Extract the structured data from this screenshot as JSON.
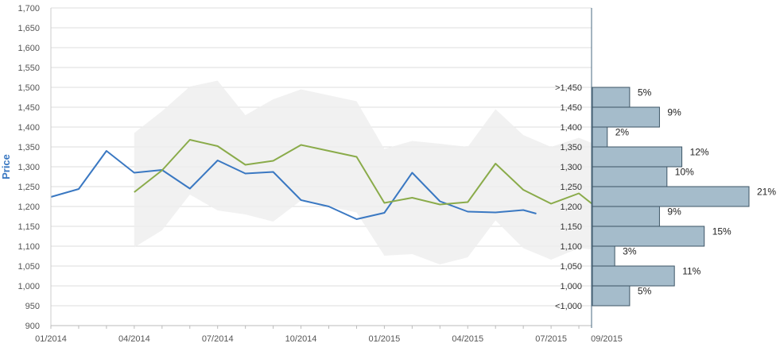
{
  "chart_data": {
    "type": "line",
    "ylabel": "Price",
    "ylim": [
      900,
      1700
    ],
    "y_ticks": [
      "1,700",
      "1,650",
      "1,600",
      "1,550",
      "1,500",
      "1,450",
      "1,400",
      "1,350",
      "1,300",
      "1,250",
      "1,200",
      "1,150",
      "1,100",
      "1,050",
      "1,000",
      "950",
      "900"
    ],
    "y_tick_values": [
      1700,
      1650,
      1600,
      1550,
      1500,
      1450,
      1400,
      1350,
      1300,
      1250,
      1200,
      1150,
      1100,
      1050,
      1000,
      950,
      900
    ],
    "x_range": [
      "2014-01",
      "2015-09"
    ],
    "x_ticks": [
      "01/2014",
      "04/2014",
      "07/2014",
      "10/2014",
      "01/2015",
      "04/2015",
      "07/2015",
      "09/2015"
    ],
    "x_tick_months": [
      0,
      3,
      6,
      9,
      12,
      15,
      18,
      20
    ],
    "colors": {
      "blue": "#3a78c2",
      "green": "#8aab4a",
      "band": "#eeeeee",
      "hist_fill": "#a5bccb",
      "hist_stroke": "#3d5566"
    },
    "series": [
      {
        "color": "#3a78c2",
        "points": [
          {
            "x": "2014-01",
            "y": 1224
          },
          {
            "x": "2014-02",
            "y": 1244
          },
          {
            "x": "2014-03",
            "y": 1340
          },
          {
            "x": "2014-04",
            "y": 1285
          },
          {
            "x": "2014-05",
            "y": 1292
          },
          {
            "x": "2014-06",
            "y": 1245
          },
          {
            "x": "2014-07",
            "y": 1316
          },
          {
            "x": "2014-08",
            "y": 1283
          },
          {
            "x": "2014-09",
            "y": 1287
          },
          {
            "x": "2014-10",
            "y": 1216
          },
          {
            "x": "2014-11",
            "y": 1200
          },
          {
            "x": "2014-12",
            "y": 1168
          },
          {
            "x": "2015-01",
            "y": 1184
          },
          {
            "x": "2015-02",
            "y": 1285
          },
          {
            "x": "2015-03",
            "y": 1213
          },
          {
            "x": "2015-04",
            "y": 1187
          },
          {
            "x": "2015-05",
            "y": 1185
          },
          {
            "x": "2015-06",
            "y": 1191
          },
          {
            "x": "2015-06-15",
            "y": 1182
          }
        ]
      },
      {
        "color": "#8aab4a",
        "points": [
          {
            "x": "2014-04",
            "y": 1236
          },
          {
            "x": "2014-05",
            "y": 1291
          },
          {
            "x": "2014-06",
            "y": 1368
          },
          {
            "x": "2014-07",
            "y": 1352
          },
          {
            "x": "2014-08",
            "y": 1305
          },
          {
            "x": "2014-09",
            "y": 1315
          },
          {
            "x": "2014-10",
            "y": 1355
          },
          {
            "x": "2014-11",
            "y": 1340
          },
          {
            "x": "2014-12",
            "y": 1325
          },
          {
            "x": "2015-01",
            "y": 1209
          },
          {
            "x": "2015-02",
            "y": 1222
          },
          {
            "x": "2015-03",
            "y": 1205
          },
          {
            "x": "2015-04",
            "y": 1211
          },
          {
            "x": "2015-05",
            "y": 1308
          },
          {
            "x": "2015-06",
            "y": 1242
          },
          {
            "x": "2015-07",
            "y": 1207
          },
          {
            "x": "2015-08",
            "y": 1233
          },
          {
            "x": "2015-08-15",
            "y": 1207
          },
          {
            "x": "2015-09",
            "y": 1182
          },
          {
            "x": "2015-09-01",
            "y": 1220
          }
        ]
      }
    ],
    "forecast_band": {
      "color": "#eeeeee",
      "upper": [
        {
          "x": "2014-04",
          "y": 1385
        },
        {
          "x": "2014-05",
          "y": 1440
        },
        {
          "x": "2014-06",
          "y": 1502
        },
        {
          "x": "2014-07",
          "y": 1517
        },
        {
          "x": "2014-08",
          "y": 1430
        },
        {
          "x": "2014-09",
          "y": 1470
        },
        {
          "x": "2014-10",
          "y": 1495
        },
        {
          "x": "2014-11",
          "y": 1480
        },
        {
          "x": "2014-12",
          "y": 1465
        },
        {
          "x": "2015-01",
          "y": 1345
        },
        {
          "x": "2015-02",
          "y": 1365
        },
        {
          "x": "2015-03",
          "y": 1358
        },
        {
          "x": "2015-04",
          "y": 1350
        },
        {
          "x": "2015-05",
          "y": 1445
        },
        {
          "x": "2015-06",
          "y": 1380
        },
        {
          "x": "2015-07",
          "y": 1350
        },
        {
          "x": "2015-08",
          "y": 1373
        },
        {
          "x": "2015-09",
          "y": 1345
        }
      ],
      "lower": [
        {
          "x": "2014-04",
          "y": 1097
        },
        {
          "x": "2014-05",
          "y": 1140
        },
        {
          "x": "2014-06",
          "y": 1230
        },
        {
          "x": "2014-07",
          "y": 1190
        },
        {
          "x": "2014-08",
          "y": 1180
        },
        {
          "x": "2014-09",
          "y": 1162
        },
        {
          "x": "2014-10",
          "y": 1215
        },
        {
          "x": "2014-11",
          "y": 1200
        },
        {
          "x": "2014-12",
          "y": 1185
        },
        {
          "x": "2015-01",
          "y": 1076
        },
        {
          "x": "2015-02",
          "y": 1080
        },
        {
          "x": "2015-03",
          "y": 1054
        },
        {
          "x": "2015-04",
          "y": 1072
        },
        {
          "x": "2015-05",
          "y": 1165
        },
        {
          "x": "2015-06",
          "y": 1095
        },
        {
          "x": "2015-07",
          "y": 1066
        },
        {
          "x": "2015-08",
          "y": 1095
        },
        {
          "x": "2015-09",
          "y": 1088
        }
      ]
    },
    "distribution": {
      "type": "bar",
      "orientation": "horizontal",
      "bins": [
        {
          "label": ">1,450",
          "center": 1475,
          "percent": 5,
          "percent_label": "5%"
        },
        {
          "label": "1,450",
          "center": 1425,
          "percent": 9,
          "percent_label": "9%"
        },
        {
          "label": "1,400",
          "center": 1375,
          "percent": 2,
          "percent_label": "2%"
        },
        {
          "label": "1,350",
          "center": 1325,
          "percent": 12,
          "percent_label": "12%"
        },
        {
          "label": "1,300",
          "center": 1275,
          "percent": 10,
          "percent_label": "10%"
        },
        {
          "label": "1,250",
          "center": 1225,
          "percent": 21,
          "percent_label": "21%"
        },
        {
          "label": "1,200",
          "center": 1175,
          "percent": 9,
          "percent_label": "9%"
        },
        {
          "label": "1,150",
          "center": 1125,
          "percent": 15,
          "percent_label": "15%"
        },
        {
          "label": "1,100",
          "center": 1075,
          "percent": 3,
          "percent_label": "3%"
        },
        {
          "label": "1,050",
          "center": 1025,
          "percent": 11,
          "percent_label": "11%"
        },
        {
          "label": "1,000",
          "center": 975,
          "percent": 5,
          "percent_label": "5%"
        },
        {
          "label": "<1,000",
          "center": 925,
          "percent": 0,
          "percent_label": ""
        }
      ],
      "bin_width": 50,
      "percent_max": 21
    },
    "grid": true
  }
}
